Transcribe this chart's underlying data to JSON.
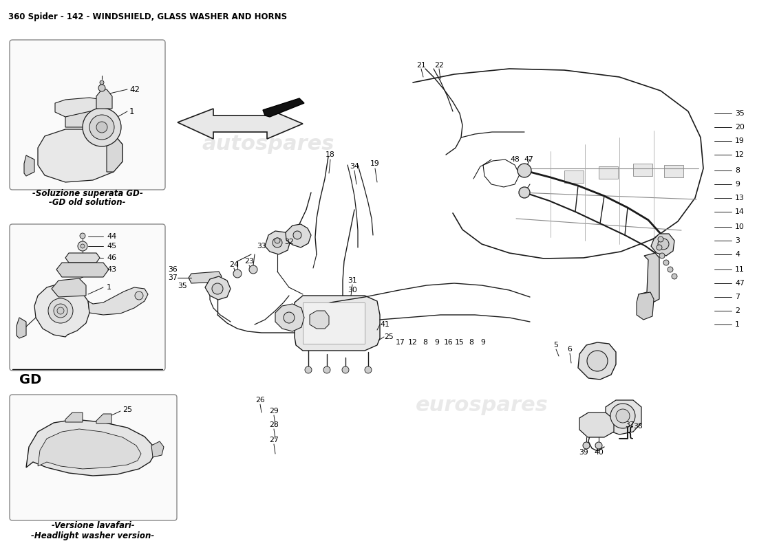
{
  "title": "360 Spider - 142 - WINDSHIELD, GLASS WASHER AND HORNS",
  "title_fontsize": 8.5,
  "bg_color": "#ffffff",
  "line_color": "#1a1a1a",
  "text_color": "#000000",
  "watermark1": "autospares",
  "watermark2": "eurospares",
  "subtitle_box1_l1": "-Soluzione superata GD-",
  "subtitle_box1_l2": "-GD old solution-",
  "subtitle_box2_label": "GD",
  "subtitle_box3_l1": "-Versione lavafari-",
  "subtitle_box3_l2": "-Headlight washer version-"
}
